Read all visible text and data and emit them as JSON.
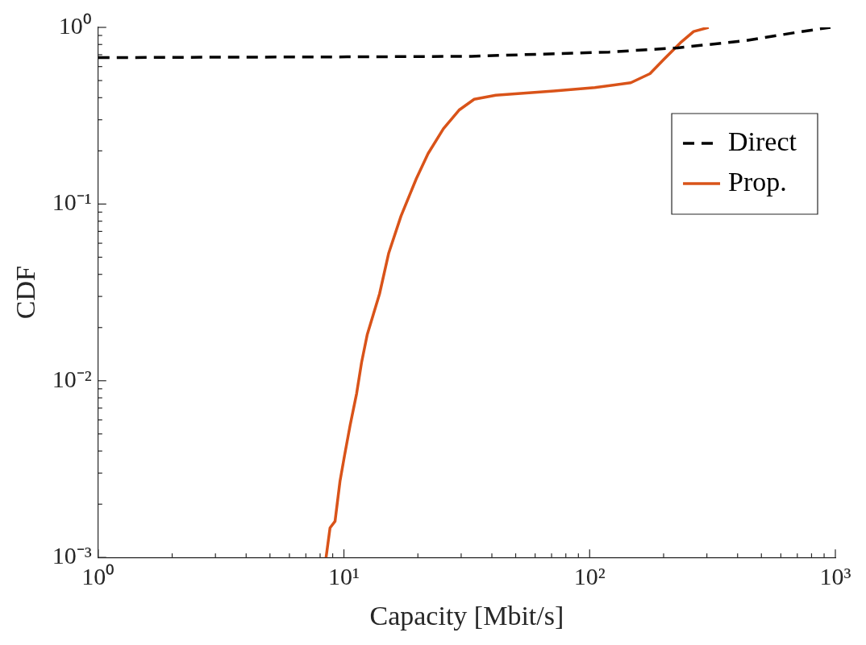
{
  "chart_data": {
    "type": "line",
    "xlabel": "Capacity [Mbit/s]",
    "ylabel": "CDF",
    "log": "xy",
    "grid": false,
    "legend": "top right",
    "marker": "none",
    "xlim": [
      1,
      1000
    ],
    "ylim": [
      0.001,
      1
    ],
    "xticks": [
      {
        "value": 1,
        "label": "10⁰"
      },
      {
        "value": 10,
        "label": "10¹"
      },
      {
        "value": 100,
        "label": "10²"
      },
      {
        "value": 1000,
        "label": "10³"
      }
    ],
    "yticks": [
      {
        "value": 0.001,
        "label": "10⁻³"
      },
      {
        "value": 0.01,
        "label": "10⁻²"
      },
      {
        "value": 0.1,
        "label": "10⁻¹"
      },
      {
        "value": 1,
        "label": "10⁰"
      }
    ],
    "series": [
      {
        "name": "Direct",
        "color": "#000000",
        "line_style": "dashed",
        "x": [
          1,
          3.24,
          10.3,
          33,
          120,
          228,
          433,
          728,
          955
        ],
        "values": [
          0.674,
          0.678,
          0.681,
          0.686,
          0.725,
          0.766,
          0.842,
          0.947,
          1.0
        ]
      },
      {
        "name": "Prop.",
        "color": "#d95319",
        "line_style": "solid",
        "x": [
          8.46,
          8.78,
          9.2,
          9.64,
          10.05,
          10.6,
          11.27,
          11.8,
          12.45,
          13.96,
          15.2,
          17.07,
          19.7,
          22,
          25.4,
          29.4,
          33.9,
          41.5,
          71.5,
          105,
          147,
          176,
          200,
          234,
          265,
          305
        ],
        "values": [
          0.001,
          0.00147,
          0.0016,
          0.0027,
          0.00375,
          0.0056,
          0.0085,
          0.0127,
          0.0183,
          0.031,
          0.0525,
          0.0855,
          0.139,
          0.193,
          0.267,
          0.34,
          0.392,
          0.413,
          0.436,
          0.456,
          0.486,
          0.547,
          0.657,
          0.818,
          0.947,
          1.0
        ]
      }
    ]
  }
}
